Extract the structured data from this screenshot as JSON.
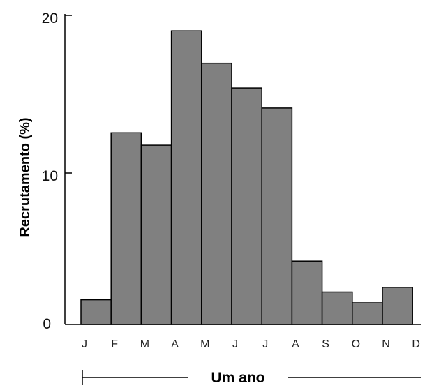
{
  "chart_data": {
    "type": "bar",
    "categories": [
      "J",
      "F",
      "M",
      "A",
      "M",
      "J",
      "J",
      "A",
      "S",
      "O",
      "N",
      "D"
    ],
    "values": [
      1.6,
      12.4,
      11.6,
      19.0,
      16.9,
      15.3,
      14.0,
      4.1,
      2.1,
      1.4,
      2.4,
      0
    ],
    "title": "",
    "xlabel": "",
    "ylabel": "Recrutamento (%)",
    "ylim": [
      0,
      20
    ],
    "yticks": [
      "0",
      "10",
      "20"
    ],
    "grid": false,
    "annotation": "Um ano",
    "bar_color": "#808080",
    "bar_edge_color": "#000000"
  }
}
